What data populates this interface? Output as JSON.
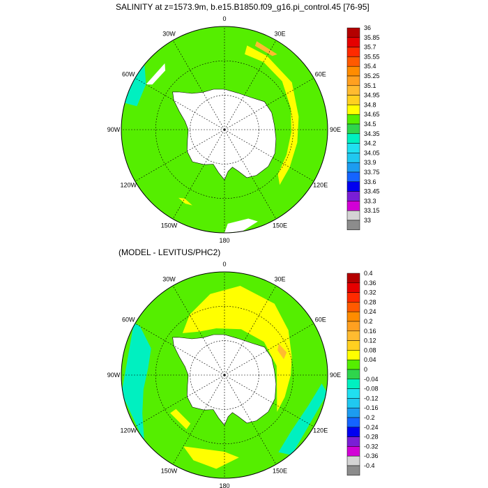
{
  "panels": [
    {
      "title": "SALINITY at z=1573.9m, b.e15.B1850.f09_g16.pi_control.45 [76-95]",
      "lon_labels": [
        "0",
        "30E",
        "60E",
        "90E",
        "120E",
        "150E",
        "180",
        "150W",
        "120W",
        "90W",
        "60W",
        "30W"
      ],
      "colorbar": {
        "labels": [
          "36",
          "35.85",
          "35.7",
          "35.55",
          "35.4",
          "35.25",
          "35.1",
          "34.95",
          "34.8",
          "34.65",
          "34.5",
          "34.35",
          "34.2",
          "34.05",
          "33.9",
          "33.75",
          "33.6",
          "33.45",
          "33.3",
          "33.15",
          "33"
        ],
        "colors": [
          "#b40000",
          "#e60000",
          "#ff2a00",
          "#ff5a00",
          "#ff8c00",
          "#ffa020",
          "#ffbb30",
          "#ffd020",
          "#ffff00",
          "#55ee00",
          "#2fd54c",
          "#00f0c0",
          "#20e0f0",
          "#20c8f0",
          "#1c9cf0",
          "#1464ff",
          "#0000f0",
          "#7a1ed6",
          "#d200d6",
          "#d4d4d4",
          "#8c8c8c"
        ]
      },
      "field": {
        "ocean": "#55ee00",
        "bands": "#ffff00",
        "orange": "#ffbb30",
        "cyan": "#00f0c0",
        "land": "#ffffff"
      }
    },
    {
      "title": "(MODEL - LEVITUS/PHC2)",
      "lon_labels": [
        "0",
        "30E",
        "60E",
        "90E",
        "120E",
        "150E",
        "180",
        "150W",
        "120W",
        "90W",
        "60W",
        "30W"
      ],
      "colorbar": {
        "labels": [
          "0.4",
          "0.36",
          "0.32",
          "0.28",
          "0.24",
          "0.2",
          "0.16",
          "0.12",
          "0.08",
          "0.04",
          "0",
          "-0.04",
          "-0.08",
          "-0.12",
          "-0.16",
          "-0.2",
          "-0.24",
          "-0.28",
          "-0.32",
          "-0.36",
          "-0.4"
        ],
        "colors": [
          "#b40000",
          "#e60000",
          "#ff2a00",
          "#ff5a00",
          "#ff8c00",
          "#ffa020",
          "#ffbb30",
          "#ffd020",
          "#ffff00",
          "#55ee00",
          "#2fd54c",
          "#00f0c0",
          "#20e0f0",
          "#20c8f0",
          "#1c9cf0",
          "#1464ff",
          "#0000f0",
          "#7a1ed6",
          "#d200d6",
          "#d4d4d4",
          "#8c8c8c"
        ]
      },
      "field": {
        "ocean": "#55ee00",
        "bands": "#ffff00",
        "orange": "#ffbb30",
        "cyan": "#00f0c0",
        "land": "#ffffff"
      }
    }
  ]
}
